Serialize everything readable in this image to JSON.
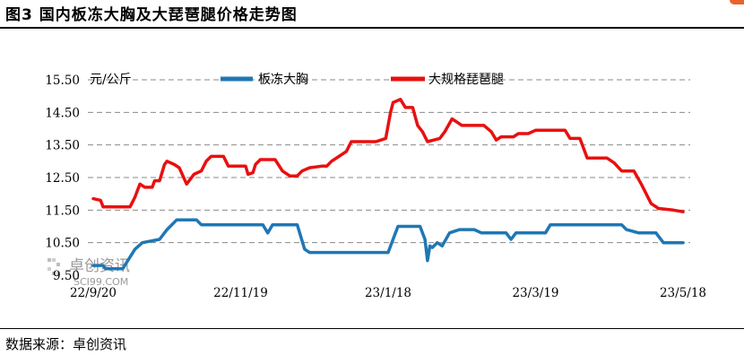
{
  "header": {
    "title": "图3   国内板冻大胸及大琵琶腿价格走势图"
  },
  "footer": {
    "source": "数据来源：卓创资讯"
  },
  "watermark": {
    "name": "卓创资讯",
    "domain": "SCI99.COM"
  },
  "chart_data": {
    "type": "line",
    "ylabel": "元/公斤",
    "ylim": [
      9.5,
      15.5
    ],
    "yticks": [
      "9.50",
      "10.50",
      "11.50",
      "12.50",
      "13.50",
      "14.50",
      "15.50"
    ],
    "grid": true,
    "legend_position": "top",
    "x_start": "22/9/20",
    "x_end": "23/5/18",
    "x_tick_labels": [
      "22/9/20",
      "22/11/19",
      "23/1/18",
      "23/3/19",
      "23/5/18"
    ],
    "series": [
      {
        "name": "板冻大胸",
        "color": "#1f77b4",
        "points": [
          [
            "2022-09-20",
            9.8
          ],
          [
            "2022-09-24",
            9.8
          ],
          [
            "2022-09-25",
            9.7
          ],
          [
            "2022-10-02",
            9.7
          ],
          [
            "2022-10-07",
            10.3
          ],
          [
            "2022-10-10",
            10.5
          ],
          [
            "2022-10-17",
            10.6
          ],
          [
            "2022-10-20",
            10.9
          ],
          [
            "2022-10-24",
            11.2
          ],
          [
            "2022-11-01",
            11.2
          ],
          [
            "2022-11-03",
            11.05
          ],
          [
            "2022-11-16",
            11.05
          ],
          [
            "2022-11-23",
            11.05
          ],
          [
            "2022-11-28",
            11.05
          ],
          [
            "2022-11-30",
            10.8
          ],
          [
            "2022-12-02",
            11.05
          ],
          [
            "2022-12-12",
            11.05
          ],
          [
            "2022-12-15",
            10.3
          ],
          [
            "2022-12-17",
            10.2
          ],
          [
            "2023-01-18",
            10.2
          ],
          [
            "2023-01-21",
            10.8
          ],
          [
            "2023-01-22",
            11.0
          ],
          [
            "2023-01-31",
            11.0
          ],
          [
            "2023-02-02",
            10.6
          ],
          [
            "2023-02-03",
            9.95
          ],
          [
            "2023-02-04",
            10.4
          ],
          [
            "2023-02-05",
            10.35
          ],
          [
            "2023-02-07",
            10.5
          ],
          [
            "2023-02-09",
            10.4
          ],
          [
            "2023-02-12",
            10.8
          ],
          [
            "2023-02-16",
            10.9
          ],
          [
            "2023-02-22",
            10.9
          ],
          [
            "2023-02-25",
            10.8
          ],
          [
            "2023-03-07",
            10.8
          ],
          [
            "2023-03-09",
            10.6
          ],
          [
            "2023-03-11",
            10.8
          ],
          [
            "2023-03-23",
            10.8
          ],
          [
            "2023-03-25",
            11.05
          ],
          [
            "2023-04-15",
            11.05
          ],
          [
            "2023-04-23",
            11.05
          ],
          [
            "2023-04-25",
            10.9
          ],
          [
            "2023-04-30",
            10.8
          ],
          [
            "2023-05-07",
            10.8
          ],
          [
            "2023-05-10",
            10.5
          ],
          [
            "2023-05-18",
            10.5
          ]
        ]
      },
      {
        "name": "大规格琵琶腿",
        "color": "#e81010",
        "points": [
          [
            "2022-09-20",
            11.85
          ],
          [
            "2022-09-23",
            11.8
          ],
          [
            "2022-09-24",
            11.6
          ],
          [
            "2022-10-05",
            11.6
          ],
          [
            "2022-10-07",
            11.9
          ],
          [
            "2022-10-09",
            12.3
          ],
          [
            "2022-10-11",
            12.2
          ],
          [
            "2022-10-14",
            12.2
          ],
          [
            "2022-10-15",
            12.4
          ],
          [
            "2022-10-17",
            12.4
          ],
          [
            "2022-10-19",
            12.9
          ],
          [
            "2022-10-20",
            13.0
          ],
          [
            "2022-10-23",
            12.9
          ],
          [
            "2022-10-25",
            12.8
          ],
          [
            "2022-10-28",
            12.3
          ],
          [
            "2022-10-31",
            12.6
          ],
          [
            "2022-11-03",
            12.7
          ],
          [
            "2022-11-05",
            13.0
          ],
          [
            "2022-11-07",
            13.15
          ],
          [
            "2022-11-12",
            13.15
          ],
          [
            "2022-11-14",
            12.85
          ],
          [
            "2022-11-21",
            12.85
          ],
          [
            "2022-11-22",
            12.6
          ],
          [
            "2022-11-24",
            12.65
          ],
          [
            "2022-11-25",
            12.9
          ],
          [
            "2022-11-27",
            13.05
          ],
          [
            "2022-12-03",
            13.05
          ],
          [
            "2022-12-06",
            12.7
          ],
          [
            "2022-12-09",
            12.55
          ],
          [
            "2022-12-12",
            12.55
          ],
          [
            "2022-12-14",
            12.7
          ],
          [
            "2022-12-17",
            12.8
          ],
          [
            "2022-12-22",
            12.85
          ],
          [
            "2022-12-24",
            12.85
          ],
          [
            "2022-12-26",
            13.0
          ],
          [
            "2022-12-29",
            13.15
          ],
          [
            "2023-01-01",
            13.3
          ],
          [
            "2023-01-03",
            13.6
          ],
          [
            "2023-01-13",
            13.6
          ],
          [
            "2023-01-17",
            13.7
          ],
          [
            "2023-01-19",
            14.5
          ],
          [
            "2023-01-20",
            14.8
          ],
          [
            "2023-01-23",
            14.9
          ],
          [
            "2023-01-25",
            14.65
          ],
          [
            "2023-01-28",
            14.65
          ],
          [
            "2023-01-30",
            14.1
          ],
          [
            "2023-02-01",
            13.9
          ],
          [
            "2023-02-03",
            13.6
          ],
          [
            "2023-02-08",
            13.7
          ],
          [
            "2023-02-10",
            13.9
          ],
          [
            "2023-02-13",
            14.3
          ],
          [
            "2023-02-15",
            14.2
          ],
          [
            "2023-02-17",
            14.1
          ],
          [
            "2023-02-26",
            14.1
          ],
          [
            "2023-03-01",
            13.9
          ],
          [
            "2023-03-03",
            13.65
          ],
          [
            "2023-03-05",
            13.75
          ],
          [
            "2023-03-10",
            13.75
          ],
          [
            "2023-03-12",
            13.85
          ],
          [
            "2023-03-16",
            13.85
          ],
          [
            "2023-03-19",
            13.95
          ],
          [
            "2023-03-31",
            13.95
          ],
          [
            "2023-04-02",
            13.7
          ],
          [
            "2023-04-06",
            13.7
          ],
          [
            "2023-04-09",
            13.1
          ],
          [
            "2023-04-17",
            13.1
          ],
          [
            "2023-04-20",
            12.95
          ],
          [
            "2023-04-23",
            12.7
          ],
          [
            "2023-04-28",
            12.7
          ],
          [
            "2023-05-01",
            12.3
          ],
          [
            "2023-05-05",
            11.7
          ],
          [
            "2023-05-08",
            11.55
          ],
          [
            "2023-05-14",
            11.5
          ],
          [
            "2023-05-18",
            11.45
          ]
        ]
      }
    ]
  }
}
